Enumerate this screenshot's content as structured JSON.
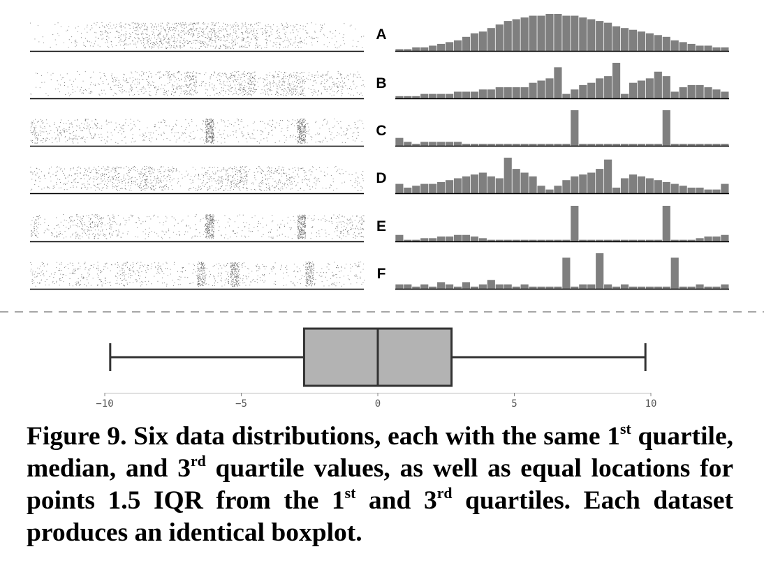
{
  "chart_data": [
    {
      "type": "scatter",
      "description_role": "strip plots (jittered)",
      "rows": [
        "A",
        "B",
        "C",
        "D",
        "E",
        "F"
      ],
      "xlim": [
        -10,
        10
      ],
      "point_color": "#333333"
    },
    {
      "type": "bar",
      "description_role": "histograms",
      "rows": [
        "A",
        "B",
        "C",
        "D",
        "E",
        "F"
      ],
      "bins": 40,
      "bar_color": "#7f7f7f",
      "series": [
        {
          "name": "A",
          "values": [
            1,
            1,
            2,
            2,
            3,
            4,
            5,
            6,
            8,
            10,
            11,
            13,
            15,
            17,
            18,
            19,
            20,
            20,
            21,
            21,
            20,
            20,
            19,
            18,
            17,
            16,
            14,
            13,
            12,
            11,
            10,
            9,
            8,
            6,
            5,
            4,
            3,
            3,
            2,
            2
          ]
        },
        {
          "name": "B",
          "values": [
            1,
            1,
            1,
            2,
            2,
            2,
            2,
            3,
            3,
            3,
            4,
            4,
            5,
            5,
            5,
            5,
            7,
            8,
            9,
            14,
            2,
            4,
            6,
            7,
            9,
            10,
            16,
            2,
            7,
            8,
            9,
            12,
            10,
            3,
            5,
            6,
            6,
            5,
            4,
            3
          ]
        },
        {
          "name": "C",
          "values": [
            4,
            2,
            1,
            2,
            2,
            2,
            2,
            2,
            1,
            1,
            1,
            1,
            1,
            1,
            1,
            1,
            1,
            1,
            1,
            1,
            1,
            18,
            1,
            1,
            1,
            1,
            1,
            1,
            1,
            1,
            1,
            1,
            18,
            1,
            1,
            1,
            1,
            1,
            1,
            1
          ]
        },
        {
          "name": "D",
          "values": [
            5,
            3,
            4,
            5,
            5,
            6,
            7,
            8,
            9,
            10,
            11,
            9,
            8,
            19,
            13,
            11,
            9,
            4,
            2,
            4,
            7,
            9,
            10,
            11,
            13,
            18,
            3,
            8,
            10,
            9,
            8,
            7,
            6,
            5,
            4,
            3,
            3,
            2,
            2,
            5
          ]
        },
        {
          "name": "E",
          "values": [
            4,
            1,
            1,
            2,
            2,
            3,
            3,
            4,
            4,
            3,
            2,
            1,
            1,
            1,
            1,
            1,
            1,
            1,
            1,
            1,
            1,
            22,
            1,
            1,
            1,
            1,
            1,
            1,
            1,
            1,
            1,
            1,
            22,
            1,
            1,
            1,
            2,
            3,
            3,
            4
          ]
        },
        {
          "name": "F",
          "values": [
            2,
            2,
            1,
            2,
            1,
            3,
            2,
            1,
            3,
            1,
            2,
            4,
            2,
            2,
            1,
            2,
            1,
            1,
            1,
            1,
            14,
            1,
            2,
            2,
            16,
            2,
            1,
            2,
            1,
            1,
            1,
            1,
            1,
            14,
            1,
            1,
            2,
            1,
            1,
            2
          ]
        }
      ]
    },
    {
      "type": "boxplot",
      "whisker_low": -9.8,
      "q1": -2.7,
      "median": 0,
      "q3": 2.7,
      "whisker_high": 9.8,
      "xlim": [
        -10,
        10
      ],
      "x_ticks": [
        -10,
        -5,
        0,
        5,
        10
      ],
      "x_tick_labels": [
        "−10",
        "−5",
        "0",
        "5",
        "10"
      ],
      "box_color": "#b3b3b3"
    }
  ],
  "caption": {
    "fig_label": "Figure 9.",
    "t1": " Six data distributions, each with the same 1",
    "s1": "st",
    "t2": " quartile, median, and 3",
    "s2": "rd",
    "t3": " quartile values, as well as equal locations for points 1.5 IQR from the 1",
    "s3": "st",
    "t4": " and 3",
    "s4": "rd",
    "t5": " quartiles. Each dataset produces an identical boxplot."
  }
}
